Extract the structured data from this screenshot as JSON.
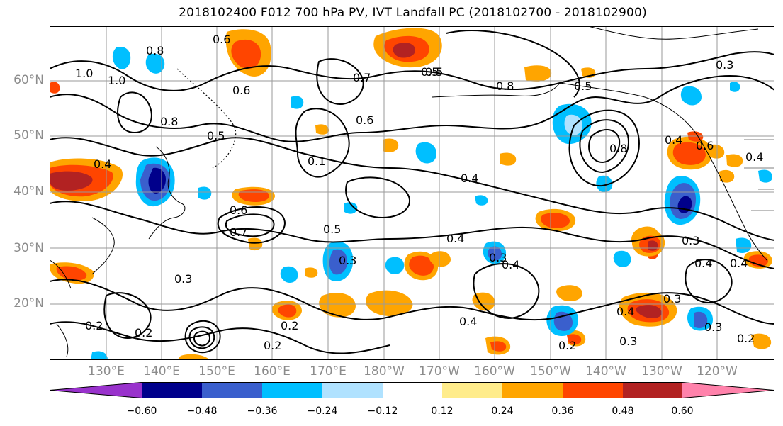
{
  "figure": {
    "title": "2018102400 F012 700 hPa PV, IVT Landfall PC (2018102700 - 2018102900)"
  },
  "map": {
    "lat_labels": [
      "60°N",
      "50°N",
      "40°N",
      "30°N",
      "20°N"
    ],
    "lon_labels": [
      "130°E",
      "140°E",
      "150°E",
      "160°E",
      "170°E",
      "180°W",
      "170°W",
      "160°W",
      "150°W",
      "140°W",
      "130°W",
      "120°W"
    ],
    "contour_labels": [
      "1.0",
      "1.0",
      "0.8",
      "0.6",
      "0.8",
      "0.6",
      "0.5",
      "0.4",
      "0.6",
      "0.7",
      "0.5",
      "0.4",
      "0.3",
      "0.3",
      "0.2",
      "0.2",
      "0.2",
      "0.2",
      "0.4",
      "0.3",
      "0.4",
      "0.5",
      "0.7",
      "0.5",
      "0.8",
      "0.8",
      "0.4",
      "0.6",
      "0.3",
      "0.4",
      "0.4",
      "0.3",
      "0.4",
      "0.4",
      "0.3",
      "0.2",
      "0.3",
      "0.3",
      "0.2",
      "0.6",
      "0.4",
      "0.5",
      "0.1"
    ]
  },
  "colorbar": {
    "ticks": [
      "−0.60",
      "−0.48",
      "−0.36",
      "−0.24",
      "−0.12",
      "0.12",
      "0.24",
      "0.36",
      "0.48",
      "0.60"
    ],
    "colors": [
      "#9932cc",
      "#00008b",
      "#3a5fcd",
      "#00bfff",
      "#b0e2ff",
      "#ffffff",
      "#ffec8b",
      "#ffa500",
      "#ff4500",
      "#b22222",
      "#ff82ab"
    ]
  }
}
